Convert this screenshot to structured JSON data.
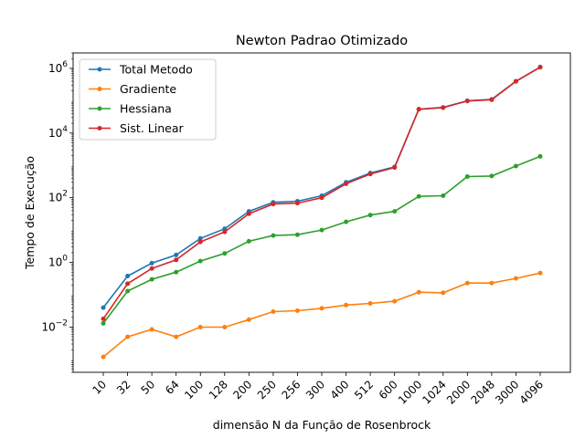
{
  "chart_data": {
    "type": "line",
    "title": "Newton Padrao Otimizado",
    "xlabel": "dimensão N da Função de Rosenbrock",
    "ylabel": "Tempo de Execução",
    "yscale": "log",
    "ylim": [
      0.0004,
      3000000
    ],
    "categories": [
      "10",
      "32",
      "50",
      "64",
      "100",
      "128",
      "200",
      "250",
      "256",
      "300",
      "400",
      "512",
      "600",
      "1000",
      "1024",
      "2000",
      "2048",
      "3000",
      "4096"
    ],
    "y_ticks": [
      {
        "value": 0.01,
        "base": "10",
        "exp": "−2"
      },
      {
        "value": 1,
        "base": "10",
        "exp": "0"
      },
      {
        "value": 100,
        "base": "10",
        "exp": "2"
      },
      {
        "value": 10000,
        "base": "10",
        "exp": "4"
      },
      {
        "value": 1000000,
        "base": "10",
        "exp": "6"
      }
    ],
    "grid": false,
    "legend_position": "top-left",
    "series": [
      {
        "name": "Total Metodo",
        "color": "#1f77b4",
        "values": [
          0.04,
          0.38,
          0.95,
          1.7,
          5.5,
          11,
          38,
          72,
          78,
          115,
          300,
          580,
          900,
          55000,
          62000,
          100000,
          110000,
          400000,
          1100000
        ]
      },
      {
        "name": "Gradiente",
        "color": "#ff7f0e",
        "values": [
          0.0012,
          0.005,
          0.0085,
          0.005,
          0.01,
          0.01,
          0.017,
          0.03,
          0.032,
          0.038,
          0.048,
          0.054,
          0.063,
          0.12,
          0.115,
          0.23,
          0.23,
          0.32,
          0.47
        ]
      },
      {
        "name": "Hessiana",
        "color": "#2ca02c",
        "values": [
          0.013,
          0.13,
          0.3,
          0.5,
          1.1,
          1.9,
          4.5,
          6.8,
          7.2,
          10,
          18,
          29,
          38,
          110,
          115,
          450,
          470,
          950,
          1900
        ]
      },
      {
        "name": "Sist. Linear",
        "color": "#d62728",
        "values": [
          0.018,
          0.22,
          0.65,
          1.2,
          4.3,
          8.8,
          32,
          64,
          68,
          100,
          270,
          540,
          860,
          54000,
          61000,
          98000,
          107000,
          395000,
          1080000
        ]
      }
    ]
  }
}
